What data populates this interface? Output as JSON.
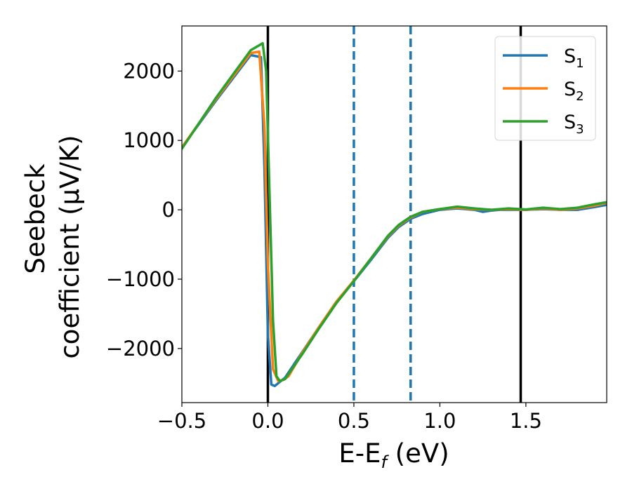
{
  "chart_data": {
    "type": "line",
    "xlabel_main": "E-E",
    "xlabel_sub": "f",
    "xlabel_unit": " (eV)",
    "ylabel_line1": "Seebeck",
    "ylabel_line2": "coefficient  (μV/K)",
    "xlim": [
      -0.5,
      1.97
    ],
    "ylim": [
      -2780,
      2650
    ],
    "xticks": [
      -0.5,
      0.0,
      0.5,
      1.0,
      1.5
    ],
    "xtick_labels": [
      "−0.5",
      "0.0",
      "0.5",
      "1.0",
      "1.5"
    ],
    "yticks": [
      -2000,
      -1000,
      0,
      1000,
      2000
    ],
    "ytick_labels": [
      "−2000",
      "−1000",
      "0",
      "1000",
      "2000"
    ],
    "grid": false,
    "legend_position": "top-right",
    "vlines": [
      {
        "x": 0.0,
        "style": "solid",
        "color": "#000000"
      },
      {
        "x": 0.5,
        "style": "dashed",
        "color": "#1f77b4"
      },
      {
        "x": 0.83,
        "style": "dashed",
        "color": "#1f77b4"
      },
      {
        "x": 1.47,
        "style": "solid",
        "color": "#000000"
      }
    ],
    "series": [
      {
        "name": "S",
        "sub": "1",
        "color": "#1f77b4",
        "x": [
          -0.5,
          -0.3,
          -0.1,
          -0.04,
          -0.02,
          0.0,
          0.02,
          0.04,
          0.07,
          0.1,
          0.2,
          0.3,
          0.4,
          0.5,
          0.6,
          0.7,
          0.76,
          0.83,
          0.9,
          1.0,
          1.1,
          1.2,
          1.25,
          1.3,
          1.35,
          1.4,
          1.5,
          1.6,
          1.7,
          1.8,
          1.9,
          1.97
        ],
        "y": [
          900,
          1580,
          2230,
          2200,
          600,
          -1800,
          -2520,
          -2540,
          -2480,
          -2420,
          -2050,
          -1680,
          -1320,
          -1030,
          -720,
          -400,
          -250,
          -130,
          -60,
          0,
          20,
          0,
          -30,
          -10,
          0,
          0,
          0,
          10,
          0,
          0,
          40,
          70
        ]
      },
      {
        "name": "S",
        "sub": "2",
        "color": "#ff7f0e",
        "x": [
          -0.5,
          -0.3,
          -0.1,
          -0.05,
          -0.02,
          0.0,
          0.03,
          0.06,
          0.09,
          0.12,
          0.2,
          0.3,
          0.4,
          0.5,
          0.6,
          0.7,
          0.76,
          0.83,
          0.9,
          1.0,
          1.1,
          1.2,
          1.3,
          1.4,
          1.5,
          1.6,
          1.7,
          1.8,
          1.9,
          1.97
        ],
        "y": [
          900,
          1600,
          2260,
          2280,
          1200,
          -800,
          -2300,
          -2470,
          -2450,
          -2400,
          -2060,
          -1680,
          -1320,
          -1020,
          -700,
          -380,
          -230,
          -110,
          -30,
          10,
          30,
          10,
          0,
          10,
          0,
          20,
          0,
          20,
          60,
          100
        ]
      },
      {
        "name": "S",
        "sub": "3",
        "color": "#2ca02c",
        "x": [
          -0.5,
          -0.3,
          -0.1,
          -0.03,
          -0.01,
          0.01,
          0.03,
          0.05,
          0.07,
          0.1,
          0.2,
          0.3,
          0.4,
          0.5,
          0.6,
          0.7,
          0.76,
          0.83,
          0.9,
          1.0,
          1.1,
          1.2,
          1.3,
          1.4,
          1.5,
          1.6,
          1.7,
          1.8,
          1.9,
          1.97
        ],
        "y": [
          880,
          1620,
          2300,
          2400,
          2000,
          200,
          -1600,
          -2400,
          -2470,
          -2440,
          -2080,
          -1700,
          -1340,
          -1030,
          -700,
          -370,
          -220,
          -100,
          -30,
          10,
          45,
          20,
          0,
          20,
          5,
          30,
          10,
          30,
          80,
          110
        ]
      }
    ]
  }
}
